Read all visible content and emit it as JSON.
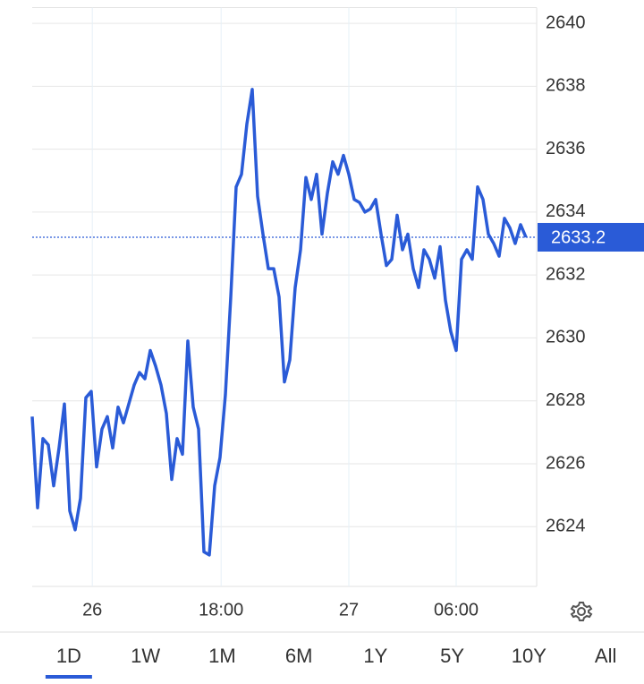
{
  "chart_data": {
    "type": "line",
    "x": [
      0,
      1,
      2,
      3,
      4,
      5,
      6,
      7,
      8,
      9,
      10,
      11,
      12,
      13,
      14,
      15,
      16,
      17,
      18,
      19,
      20,
      21,
      22,
      23,
      24,
      25,
      26,
      27,
      28,
      29,
      30,
      31,
      32,
      33,
      34,
      35,
      36,
      37,
      38,
      39,
      40,
      41,
      42,
      43,
      44,
      45,
      46,
      47,
      48,
      49,
      50,
      51,
      52,
      53,
      54,
      55,
      56,
      57,
      58,
      59,
      60,
      61,
      62,
      63,
      64,
      65,
      66,
      67,
      68,
      69,
      70,
      71,
      72,
      73,
      74,
      75,
      76,
      77,
      78,
      79,
      80,
      81,
      82,
      83,
      84,
      85,
      86,
      87,
      88,
      89,
      90,
      91,
      92
    ],
    "series": [
      {
        "color": "#2a5bd7",
        "values": [
          2627.5,
          2624.6,
          2626.8,
          2626.6,
          2625.3,
          2626.5,
          2627.9,
          2624.5,
          2623.9,
          2624.9,
          2628.1,
          2628.3,
          2625.9,
          2627.1,
          2627.5,
          2626.5,
          2627.8,
          2627.3,
          2627.9,
          2628.5,
          2628.9,
          2628.7,
          2629.6,
          2629.1,
          2628.5,
          2627.6,
          2625.5,
          2626.8,
          2626.3,
          2629.9,
          2627.8,
          2627.1,
          2623.2,
          2623.1,
          2625.3,
          2626.2,
          2628.2,
          2631.3,
          2634.8,
          2635.2,
          2636.8,
          2637.9,
          2634.5,
          2633.3,
          2632.2,
          2632.2,
          2631.3,
          2628.6,
          2629.3,
          2631.6,
          2632.8,
          2635.1,
          2634.4,
          2635.2,
          2633.3,
          2634.6,
          2635.6,
          2635.2,
          2635.8,
          2635.2,
          2634.4,
          2634.3,
          2634.0,
          2634.1,
          2634.4,
          2633.3,
          2632.3,
          2632.5,
          2633.9,
          2632.8,
          2633.3,
          2632.2,
          2631.6,
          2632.8,
          2632.5,
          2631.9,
          2632.9,
          2631.2,
          2630.2,
          2629.6,
          2632.5,
          2632.8,
          2632.5,
          2634.8,
          2634.4,
          2633.3,
          2633.0,
          2632.6,
          2633.8,
          2633.5,
          2633.0,
          2633.6,
          2633.2
        ]
      }
    ],
    "xlim": [
      0,
      94
    ],
    "xticks": [
      {
        "value": 11.2,
        "label": "26"
      },
      {
        "value": 35.2,
        "label": "18:00"
      },
      {
        "value": 59,
        "label": "27"
      },
      {
        "value": 79,
        "label": "06:00"
      }
    ],
    "ylim": [
      2622.1,
      2640.5
    ],
    "yticks": [
      2624,
      2626,
      2628,
      2630,
      2632,
      2634,
      2636,
      2638,
      2640
    ],
    "grid": true,
    "last_value": 2633.2
  },
  "tabs": {
    "items": [
      "1D",
      "1W",
      "1M",
      "6M",
      "1Y",
      "5Y",
      "10Y",
      "All"
    ],
    "active": 0
  }
}
